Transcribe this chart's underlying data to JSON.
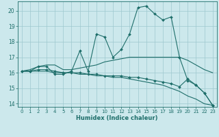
{
  "xlabel": "Humidex (Indice chaleur)",
  "xlim": [
    -0.5,
    23.5
  ],
  "ylim": [
    13.8,
    20.6
  ],
  "yticks": [
    14,
    15,
    16,
    17,
    18,
    19,
    20
  ],
  "xticks": [
    0,
    1,
    2,
    3,
    4,
    5,
    6,
    7,
    8,
    9,
    10,
    11,
    12,
    13,
    14,
    15,
    16,
    17,
    18,
    19,
    20,
    21,
    22,
    23
  ],
  "background_color": "#cce8ec",
  "grid_color": "#9dc8ce",
  "line_color": "#1e6e6a",
  "lines": [
    {
      "x": [
        0,
        1,
        2,
        3,
        4,
        5,
        6,
        7,
        8,
        9,
        10,
        11,
        12,
        13,
        14,
        15,
        16,
        17,
        18,
        19,
        20,
        21,
        22,
        23
      ],
      "y": [
        16.1,
        16.1,
        16.4,
        16.4,
        15.9,
        15.9,
        16.1,
        17.4,
        16.1,
        18.5,
        18.3,
        17.0,
        17.5,
        18.5,
        20.2,
        20.3,
        19.8,
        19.4,
        19.6,
        17.0,
        15.5,
        15.2,
        14.7,
        13.9
      ],
      "markers": true
    },
    {
      "x": [
        0,
        1,
        2,
        3,
        4,
        5,
        6,
        7,
        8,
        9,
        10,
        11,
        12,
        13,
        14,
        15,
        16,
        17,
        18,
        19,
        20,
        21,
        22,
        23
      ],
      "y": [
        16.1,
        16.2,
        16.4,
        16.5,
        16.5,
        16.2,
        16.2,
        16.3,
        16.4,
        16.5,
        16.7,
        16.8,
        16.9,
        17.0,
        17.0,
        17.0,
        17.0,
        17.0,
        17.0,
        17.0,
        16.8,
        16.5,
        16.2,
        16.0
      ],
      "markers": false
    },
    {
      "x": [
        0,
        1,
        2,
        3,
        4,
        5,
        6,
        7,
        8,
        9,
        10,
        11,
        12,
        13,
        14,
        15,
        16,
        17,
        18,
        19,
        20,
        21,
        22,
        23
      ],
      "y": [
        16.1,
        16.1,
        16.1,
        16.1,
        16.0,
        16.0,
        16.0,
        15.9,
        15.9,
        15.8,
        15.8,
        15.7,
        15.7,
        15.6,
        15.5,
        15.4,
        15.3,
        15.2,
        15.0,
        14.8,
        14.5,
        14.3,
        14.0,
        13.9
      ],
      "markers": false
    },
    {
      "x": [
        0,
        1,
        2,
        3,
        4,
        5,
        6,
        7,
        8,
        9,
        10,
        11,
        12,
        13,
        14,
        15,
        16,
        17,
        18,
        19,
        20,
        21,
        22,
        23
      ],
      "y": [
        16.1,
        16.1,
        16.2,
        16.2,
        16.1,
        16.0,
        16.0,
        16.0,
        15.9,
        15.9,
        15.8,
        15.8,
        15.8,
        15.7,
        15.7,
        15.6,
        15.5,
        15.4,
        15.3,
        15.1,
        15.6,
        15.2,
        14.7,
        13.9
      ],
      "markers": true
    }
  ]
}
